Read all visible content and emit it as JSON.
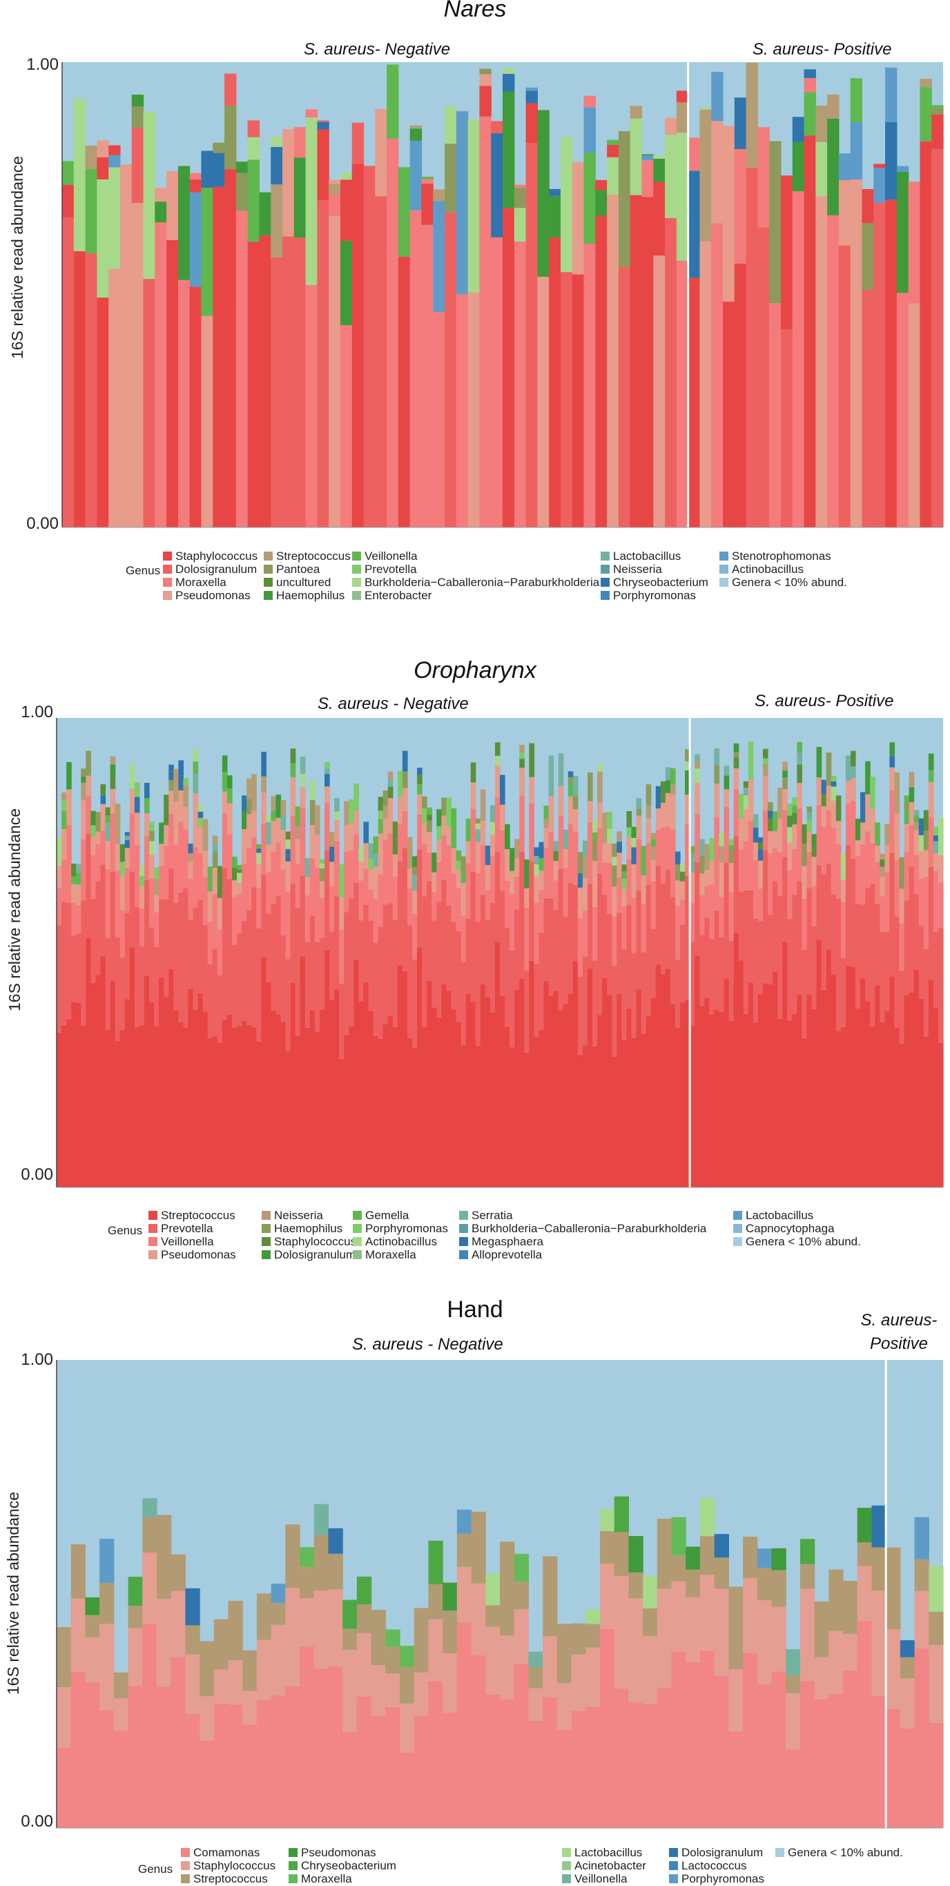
{
  "y_axis_label": "16S relative read abundance",
  "legend_title": "Genus",
  "chart_data": [
    {
      "type": "bar",
      "stacked": true,
      "title": "Nares",
      "ylabel": "16S relative read abundance",
      "ylim": [
        0,
        1
      ],
      "ytick_labels": [
        "1.00",
        "0.00"
      ],
      "groups": [
        {
          "label": "S. aureus- Negative",
          "n_samples": 54
        },
        {
          "label": "S. aureus- Positive",
          "n_samples": 22
        }
      ],
      "genera": [
        {
          "name": "Staphylococcus",
          "color": "#e84545"
        },
        {
          "name": "Dolosigranulum",
          "color": "#ee6161"
        },
        {
          "name": "Moraxella",
          "color": "#f47c7c"
        },
        {
          "name": "Pseudomonas",
          "color": "#e79c8c"
        },
        {
          "name": "Streptococcus",
          "color": "#b59c74"
        },
        {
          "name": "Pantoea",
          "color": "#8c9a5b"
        },
        {
          "name": "uncultured",
          "color": "#5b8f3a"
        },
        {
          "name": "Haemophilus",
          "color": "#3f9a3a"
        },
        {
          "name": "Veillonella",
          "color": "#5fb74e"
        },
        {
          "name": "Prevotella",
          "color": "#7ccc68"
        },
        {
          "name": "Burkholderia−Caballeronia−Paraburkholderia",
          "color": "#a7d98a"
        },
        {
          "name": "Enterobacter",
          "color": "#8fbf8c"
        },
        {
          "name": "Lactobacillus",
          "color": "#74b2a0"
        },
        {
          "name": "Neisseria",
          "color": "#5a9ea0"
        },
        {
          "name": "Chryseobacterium",
          "color": "#2f74ad"
        },
        {
          "name": "Porphyromonas",
          "color": "#3f86bd"
        },
        {
          "name": "Stenotrophomonas",
          "color": "#5d9cc9"
        },
        {
          "name": "Actinobacillus",
          "color": "#83b6d8"
        },
        {
          "name": "Genera < 10% abund.",
          "color": "#a6cce0"
        }
      ]
    },
    {
      "type": "bar",
      "stacked": true,
      "title": "Oropharynx",
      "ylabel": "16S relative read abundance",
      "ylim": [
        0,
        1
      ],
      "ytick_labels": [
        "1.00",
        "0.00"
      ],
      "groups": [
        {
          "label": "S. aureus - Negative",
          "n_samples": 130
        },
        {
          "label": "S. aureus- Positive",
          "n_samples": 52
        }
      ],
      "genera": [
        {
          "name": "Streptococcus",
          "color": "#e84545"
        },
        {
          "name": "Prevotella",
          "color": "#ee6161"
        },
        {
          "name": "Veillonella",
          "color": "#f47c7c"
        },
        {
          "name": "Pseudomonas",
          "color": "#e79c8c"
        },
        {
          "name": "Neisseria",
          "color": "#b59c74"
        },
        {
          "name": "Haemophilus",
          "color": "#8c9a5b"
        },
        {
          "name": "Staphylococcus",
          "color": "#5b8f3a"
        },
        {
          "name": "Dolosigranulum",
          "color": "#3f9a3a"
        },
        {
          "name": "Gemella",
          "color": "#5fb74e"
        },
        {
          "name": "Porphyromonas",
          "color": "#7ccc68"
        },
        {
          "name": "Actinobacillus",
          "color": "#a7d98a"
        },
        {
          "name": "Moraxella",
          "color": "#8fbf8c"
        },
        {
          "name": "Serratia",
          "color": "#74b2a0"
        },
        {
          "name": "Burkholderia−Caballeronia−Paraburkholderia",
          "color": "#5a9ea0"
        },
        {
          "name": "Megasphaera",
          "color": "#2f74ad"
        },
        {
          "name": "Alloprevotella",
          "color": "#3f86bd"
        },
        {
          "name": "Lactobacillus",
          "color": "#5d9cc9"
        },
        {
          "name": "Capnocytophaga",
          "color": "#83b6d8"
        },
        {
          "name": "Genera < 10% abund.",
          "color": "#a6cce0"
        }
      ]
    },
    {
      "type": "bar",
      "stacked": true,
      "title": "Hand",
      "ylabel": "16S relative read abundance",
      "ylim": [
        0,
        1
      ],
      "ytick_labels": [
        "1.00",
        "0.00"
      ],
      "groups": [
        {
          "label": "S. aureus - Negative",
          "n_samples": 58
        },
        {
          "label": "S. aureus- Positive",
          "n_samples": 4
        }
      ],
      "genera": [
        {
          "name": "Comamonas",
          "color": "#f28585"
        },
        {
          "name": "Staphylococcus",
          "color": "#e59e92"
        },
        {
          "name": "Streptococcus",
          "color": "#b29b72"
        },
        {
          "name": "Pseudomonas",
          "color": "#3f9a3a"
        },
        {
          "name": "Chryseobacterium",
          "color": "#4da844"
        },
        {
          "name": "Moraxella",
          "color": "#62bb58"
        },
        {
          "name": "Lactobacillus",
          "color": "#a7d98a"
        },
        {
          "name": "Acinetobacter",
          "color": "#8fcc8a"
        },
        {
          "name": "Veillonella",
          "color": "#74b2a0"
        },
        {
          "name": "Dolosigranulum",
          "color": "#2f74ad"
        },
        {
          "name": "Lactococcus",
          "color": "#3f86bd"
        },
        {
          "name": "Porphyromonas",
          "color": "#5d9cc9"
        },
        {
          "name": "Genera < 10% abund.",
          "color": "#a6cce0"
        }
      ]
    }
  ]
}
